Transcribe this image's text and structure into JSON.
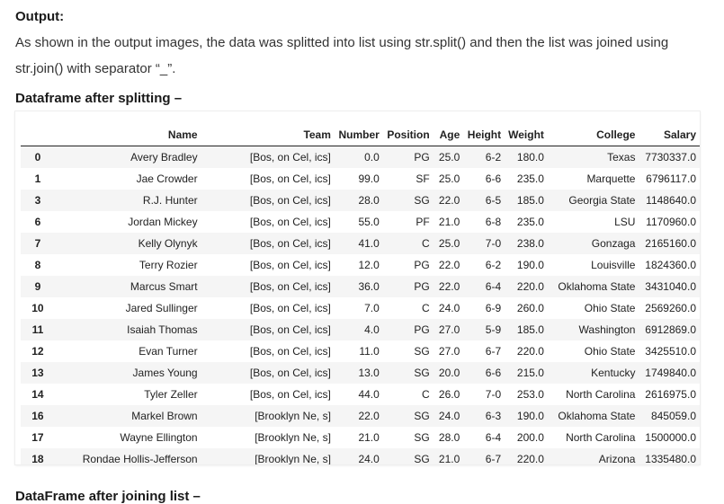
{
  "output_heading": "Output:",
  "paragraph": "As shown in the output images, the data was splitted into list using str.split() and then the list was joined using str.join() with separator “_”.",
  "section_heading": "Dataframe after splitting –",
  "next_heading": "DataFrame after joining list –",
  "table": {
    "columns": [
      "",
      "Name",
      "Team",
      "Number",
      "Position",
      "Age",
      "Height",
      "Weight",
      "College",
      "Salary"
    ],
    "rows": [
      [
        "0",
        "Avery Bradley",
        "[Bos, on Cel, ics]",
        "0.0",
        "PG",
        "25.0",
        "6-2",
        "180.0",
        "Texas",
        "7730337.0"
      ],
      [
        "1",
        "Jae Crowder",
        "[Bos, on Cel, ics]",
        "99.0",
        "SF",
        "25.0",
        "6-6",
        "235.0",
        "Marquette",
        "6796117.0"
      ],
      [
        "3",
        "R.J. Hunter",
        "[Bos, on Cel, ics]",
        "28.0",
        "SG",
        "22.0",
        "6-5",
        "185.0",
        "Georgia State",
        "1148640.0"
      ],
      [
        "6",
        "Jordan Mickey",
        "[Bos, on Cel, ics]",
        "55.0",
        "PF",
        "21.0",
        "6-8",
        "235.0",
        "LSU",
        "1170960.0"
      ],
      [
        "7",
        "Kelly Olynyk",
        "[Bos, on Cel, ics]",
        "41.0",
        "C",
        "25.0",
        "7-0",
        "238.0",
        "Gonzaga",
        "2165160.0"
      ],
      [
        "8",
        "Terry Rozier",
        "[Bos, on Cel, ics]",
        "12.0",
        "PG",
        "22.0",
        "6-2",
        "190.0",
        "Louisville",
        "1824360.0"
      ],
      [
        "9",
        "Marcus Smart",
        "[Bos, on Cel, ics]",
        "36.0",
        "PG",
        "22.0",
        "6-4",
        "220.0",
        "Oklahoma State",
        "3431040.0"
      ],
      [
        "10",
        "Jared Sullinger",
        "[Bos, on Cel, ics]",
        "7.0",
        "C",
        "24.0",
        "6-9",
        "260.0",
        "Ohio State",
        "2569260.0"
      ],
      [
        "11",
        "Isaiah Thomas",
        "[Bos, on Cel, ics]",
        "4.0",
        "PG",
        "27.0",
        "5-9",
        "185.0",
        "Washington",
        "6912869.0"
      ],
      [
        "12",
        "Evan Turner",
        "[Bos, on Cel, ics]",
        "11.0",
        "SG",
        "27.0",
        "6-7",
        "220.0",
        "Ohio State",
        "3425510.0"
      ],
      [
        "13",
        "James Young",
        "[Bos, on Cel, ics]",
        "13.0",
        "SG",
        "20.0",
        "6-6",
        "215.0",
        "Kentucky",
        "1749840.0"
      ],
      [
        "14",
        "Tyler Zeller",
        "[Bos, on Cel, ics]",
        "44.0",
        "C",
        "26.0",
        "7-0",
        "253.0",
        "North Carolina",
        "2616975.0"
      ],
      [
        "16",
        "Markel Brown",
        "[Brooklyn Ne, s]",
        "22.0",
        "SG",
        "24.0",
        "6-3",
        "190.0",
        "Oklahoma State",
        "845059.0"
      ],
      [
        "17",
        "Wayne Ellington",
        "[Brooklyn Ne, s]",
        "21.0",
        "SG",
        "28.0",
        "6-4",
        "200.0",
        "North Carolina",
        "1500000.0"
      ],
      [
        "18",
        "Rondae Hollis-Jefferson",
        "[Brooklyn Ne, s]",
        "24.0",
        "SG",
        "21.0",
        "6-7",
        "220.0",
        "Arizona",
        "1335480.0"
      ]
    ]
  }
}
